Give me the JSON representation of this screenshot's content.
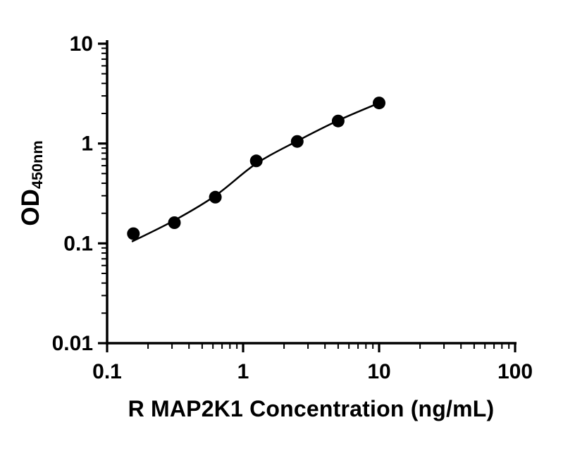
{
  "figure": {
    "background": "#ffffff"
  },
  "chart_data": {
    "type": "scatter",
    "title": "",
    "xlabel": "R MAP2K1 Concentration (ng/mL)",
    "ylabel_main": "OD",
    "ylabel_sub": "450nm",
    "x_scale": "log",
    "y_scale": "log",
    "xlim": [
      0.1,
      100
    ],
    "ylim": [
      0.01,
      10
    ],
    "x_tick_values": [
      0.1,
      1,
      10,
      100
    ],
    "x_tick_labels": [
      "0.1",
      "1",
      "10",
      "100"
    ],
    "y_tick_values": [
      10,
      1,
      0.1,
      0.01
    ],
    "y_tick_labels": [
      "10",
      "1",
      "0.1",
      "0.01"
    ],
    "grid": false,
    "legend": "none",
    "axis_color": "#000000",
    "line_color": "#000000",
    "marker": {
      "shape": "circle",
      "color": "#000000",
      "radius_px": 9
    },
    "points": [
      {
        "x": 0.156,
        "y": 0.125
      },
      {
        "x": 0.3125,
        "y": 0.161
      },
      {
        "x": 0.625,
        "y": 0.29
      },
      {
        "x": 1.25,
        "y": 0.67
      },
      {
        "x": 2.5,
        "y": 1.05
      },
      {
        "x": 5,
        "y": 1.68
      },
      {
        "x": 10,
        "y": 2.55
      }
    ],
    "fit_curve": [
      {
        "x": 0.152,
        "y": 0.104
      },
      {
        "x": 0.3125,
        "y": 0.17
      },
      {
        "x": 0.625,
        "y": 0.3
      },
      {
        "x": 1.25,
        "y": 0.63
      },
      {
        "x": 2.5,
        "y": 1.06
      },
      {
        "x": 5,
        "y": 1.7
      },
      {
        "x": 10,
        "y": 2.55
      }
    ]
  }
}
